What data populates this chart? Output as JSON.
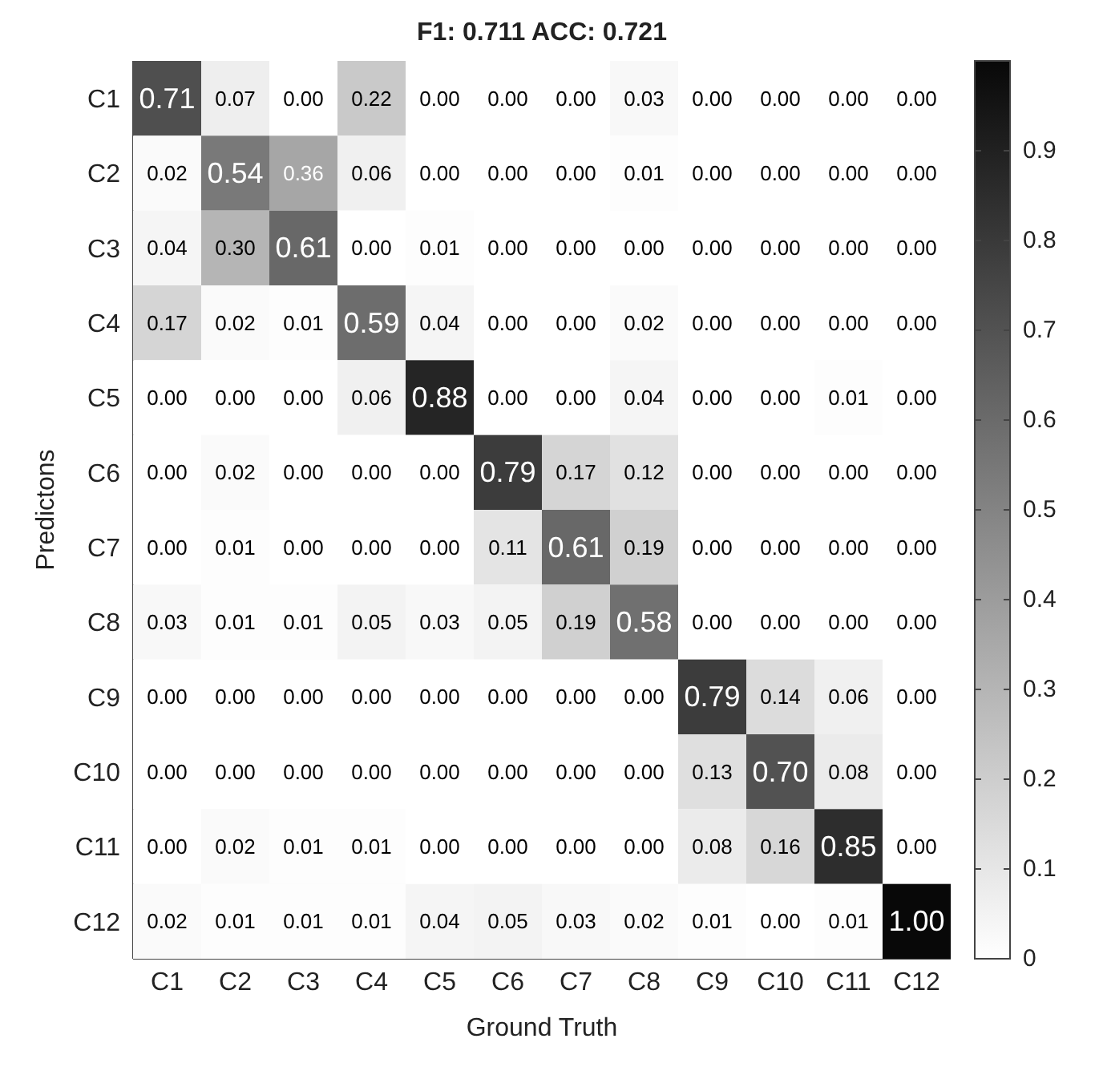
{
  "chart_data": {
    "type": "heatmap",
    "title": "F1: 0.711 ACC: 0.721",
    "xlabel": "Ground Truth",
    "ylabel": "Predictons",
    "categories": [
      "C1",
      "C2",
      "C3",
      "C4",
      "C5",
      "C6",
      "C7",
      "C8",
      "C9",
      "C10",
      "C11",
      "C12"
    ],
    "y_categories": [
      "C1",
      "C2",
      "C3",
      "C4",
      "C5",
      "C6",
      "C7",
      "C8",
      "C9",
      "C10",
      "C11",
      "C12"
    ],
    "cells": [
      [
        0.71,
        0.07,
        0,
        0.22,
        0,
        0,
        0,
        0.03,
        0,
        0,
        0,
        0
      ],
      [
        0.02,
        0.54,
        0.36,
        0.06,
        0,
        0,
        0,
        0.01,
        0,
        0,
        0,
        0
      ],
      [
        0.04,
        0.3,
        0.61,
        0,
        0.01,
        0,
        0,
        0,
        0,
        0,
        0,
        0
      ],
      [
        0.17,
        0.02,
        0.01,
        0.59,
        0.04,
        0,
        0,
        0.02,
        0,
        0,
        0,
        0
      ],
      [
        0,
        0,
        0,
        0.06,
        0.88,
        0,
        0,
        0.04,
        0,
        0,
        0.01,
        0
      ],
      [
        0,
        0.02,
        0,
        0,
        0,
        0.79,
        0.17,
        0.12,
        0,
        0,
        0,
        0
      ],
      [
        0,
        0.01,
        0,
        0,
        0,
        0.11,
        0.61,
        0.19,
        0,
        0,
        0,
        0
      ],
      [
        0.03,
        0.01,
        0.01,
        0.05,
        0.03,
        0.05,
        0.19,
        0.58,
        0,
        0,
        0,
        0
      ],
      [
        0,
        0,
        0,
        0,
        0,
        0,
        0,
        0,
        0.79,
        0.14,
        0.06,
        0
      ],
      [
        0,
        0,
        0,
        0,
        0,
        0,
        0,
        0,
        0.13,
        0.7,
        0.08,
        0
      ],
      [
        0,
        0.02,
        0.01,
        0.01,
        0,
        0,
        0,
        0,
        0.08,
        0.16,
        0.85,
        0
      ],
      [
        0.02,
        0.01,
        0.01,
        0.01,
        0.04,
        0.05,
        0.03,
        0.02,
        0.01,
        0,
        0.01,
        1.0
      ]
    ],
    "cell_labels": [
      [
        "0.71",
        "0.07",
        "0.00",
        "0.22",
        "0.00",
        "0.00",
        "0.00",
        "0.03",
        "0.00",
        "0.00",
        "0.00",
        "0.00"
      ],
      [
        "0.02",
        "0.54",
        "0.36",
        "0.06",
        "0.00",
        "0.00",
        "0.00",
        "0.01",
        "0.00",
        "0.00",
        "0.00",
        "0.00"
      ],
      [
        "0.04",
        "0.30",
        "0.61",
        "0.00",
        "0.01",
        "0.00",
        "0.00",
        "0.00",
        "0.00",
        "0.00",
        "0.00",
        "0.00"
      ],
      [
        "0.17",
        "0.02",
        "0.01",
        "0.59",
        "0.04",
        "0.00",
        "0.00",
        "0.02",
        "0.00",
        "0.00",
        "0.00",
        "0.00"
      ],
      [
        "0.00",
        "0.00",
        "0.00",
        "0.06",
        "0.88",
        "0.00",
        "0.00",
        "0.04",
        "0.00",
        "0.00",
        "0.01",
        "0.00"
      ],
      [
        "0.00",
        "0.02",
        "0.00",
        "0.00",
        "0.00",
        "0.79",
        "0.17",
        "0.12",
        "0.00",
        "0.00",
        "0.00",
        "0.00"
      ],
      [
        "0.00",
        "0.01",
        "0.00",
        "0.00",
        "0.00",
        "0.11",
        "0.61",
        "0.19",
        "0.00",
        "0.00",
        "0.00",
        "0.00"
      ],
      [
        "0.03",
        "0.01",
        "0.01",
        "0.05",
        "0.03",
        "0.05",
        "0.19",
        "0.58",
        "0.00",
        "0.00",
        "0.00",
        "0.00"
      ],
      [
        "0.00",
        "0.00",
        "0.00",
        "0.00",
        "0.00",
        "0.00",
        "0.00",
        "0.00",
        "0.79",
        "0.14",
        "0.06",
        "0.00"
      ],
      [
        "0.00",
        "0.00",
        "0.00",
        "0.00",
        "0.00",
        "0.00",
        "0.00",
        "0.00",
        "0.13",
        "0.70",
        "0.08",
        "0.00"
      ],
      [
        "0.00",
        "0.02",
        "0.01",
        "0.01",
        "0.00",
        "0.00",
        "0.00",
        "0.00",
        "0.08",
        "0.16",
        "0.85",
        "0.00"
      ],
      [
        "0.02",
        "0.01",
        "0.01",
        "0.01",
        "0.04",
        "0.05",
        "0.03",
        "0.02",
        "0.01",
        "0.00",
        "0.01",
        "1.00"
      ]
    ],
    "clim": [
      0,
      1
    ],
    "cticks": [
      0,
      0.1,
      0.2,
      0.3,
      0.4,
      0.5,
      0.6,
      0.7,
      0.8,
      0.9
    ]
  }
}
